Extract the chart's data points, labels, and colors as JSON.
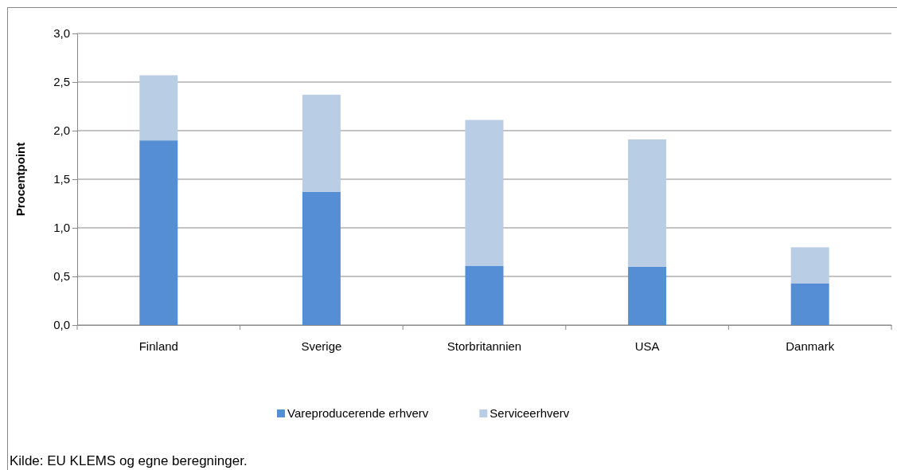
{
  "chart_data": {
    "type": "bar",
    "stacked": true,
    "ylabel": "Procentpoint",
    "categories": [
      "Finland",
      "Sverige",
      "Storbritannien",
      "USA",
      "Danmark"
    ],
    "series": [
      {
        "name": "Vareproducerende erhverv",
        "color": "#558ed5",
        "values": [
          1.9,
          1.37,
          0.61,
          0.6,
          0.43
        ]
      },
      {
        "name": "Serviceerhverv",
        "color": "#b9cde5",
        "values": [
          0.67,
          1.0,
          1.5,
          1.31,
          0.37
        ]
      }
    ],
    "ylim": [
      0,
      3
    ],
    "yticks": [
      {
        "value": 0,
        "label": "0,0"
      },
      {
        "value": 0.5,
        "label": "0,5"
      },
      {
        "value": 1,
        "label": "1,0"
      },
      {
        "value": 1.5,
        "label": "1,5"
      },
      {
        "value": 2,
        "label": "2,0"
      },
      {
        "value": 2.5,
        "label": "2,5"
      },
      {
        "value": 3,
        "label": "3,0"
      }
    ],
    "grid": "y",
    "legend": "bottom",
    "annotations": [
      "Kilde: EU KLEMS og egne beregninger."
    ]
  }
}
